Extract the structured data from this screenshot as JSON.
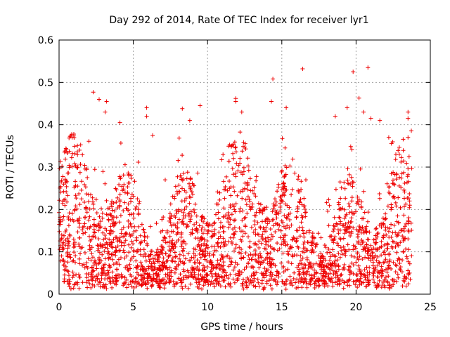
{
  "chart_data": {
    "type": "scatter",
    "title": "Day 292 of 2014, Rate Of TEC Index for receiver lyr1",
    "xlabel": "GPS time / hours",
    "ylabel": "ROTI / TECUs",
    "xlim": [
      0,
      25
    ],
    "ylim": [
      0,
      0.6
    ],
    "xticks": [
      0,
      5,
      10,
      15,
      20,
      25
    ],
    "yticks": [
      0,
      0.1,
      0.2,
      0.3,
      0.4,
      0.5,
      0.6
    ],
    "xtick_labels": [
      "0",
      "5",
      "10",
      "15",
      "20",
      "25"
    ],
    "ytick_labels": [
      "0",
      "0.1",
      "0.2",
      "0.3",
      "0.4",
      "0.5",
      "0.6"
    ],
    "grid": true,
    "marker": "+",
    "color": "#ee0000",
    "series": [
      {
        "name": "ROTI",
        "description_of_density": "dense scatter across 0-23.7 h, bulk between 0.03 and 0.3 TECU",
        "notable_points": [
          {
            "x": 2.3,
            "y": 0.477
          },
          {
            "x": 2.7,
            "y": 0.46
          },
          {
            "x": 3.2,
            "y": 0.455
          },
          {
            "x": 3.1,
            "y": 0.43
          },
          {
            "x": 4.1,
            "y": 0.405
          },
          {
            "x": 5.9,
            "y": 0.44
          },
          {
            "x": 5.9,
            "y": 0.42
          },
          {
            "x": 6.3,
            "y": 0.375
          },
          {
            "x": 8.3,
            "y": 0.438
          },
          {
            "x": 8.8,
            "y": 0.41
          },
          {
            "x": 9.5,
            "y": 0.445
          },
          {
            "x": 11.9,
            "y": 0.462
          },
          {
            "x": 11.9,
            "y": 0.455
          },
          {
            "x": 12.3,
            "y": 0.43
          },
          {
            "x": 14.4,
            "y": 0.508
          },
          {
            "x": 14.3,
            "y": 0.455
          },
          {
            "x": 15.3,
            "y": 0.44
          },
          {
            "x": 16.4,
            "y": 0.532
          },
          {
            "x": 18.6,
            "y": 0.42
          },
          {
            "x": 19.4,
            "y": 0.44
          },
          {
            "x": 19.8,
            "y": 0.525
          },
          {
            "x": 20.2,
            "y": 0.463
          },
          {
            "x": 20.5,
            "y": 0.43
          },
          {
            "x": 20.8,
            "y": 0.535
          },
          {
            "x": 21.0,
            "y": 0.415
          },
          {
            "x": 21.6,
            "y": 0.41
          },
          {
            "x": 22.2,
            "y": 0.37
          },
          {
            "x": 23.5,
            "y": 0.43
          },
          {
            "x": 23.5,
            "y": 0.415
          },
          {
            "x": 23.5,
            "y": 0.37
          }
        ],
        "x_end_hours": 23.75,
        "y_min": 0.01,
        "y_bulk_max": 0.3
      }
    ]
  }
}
